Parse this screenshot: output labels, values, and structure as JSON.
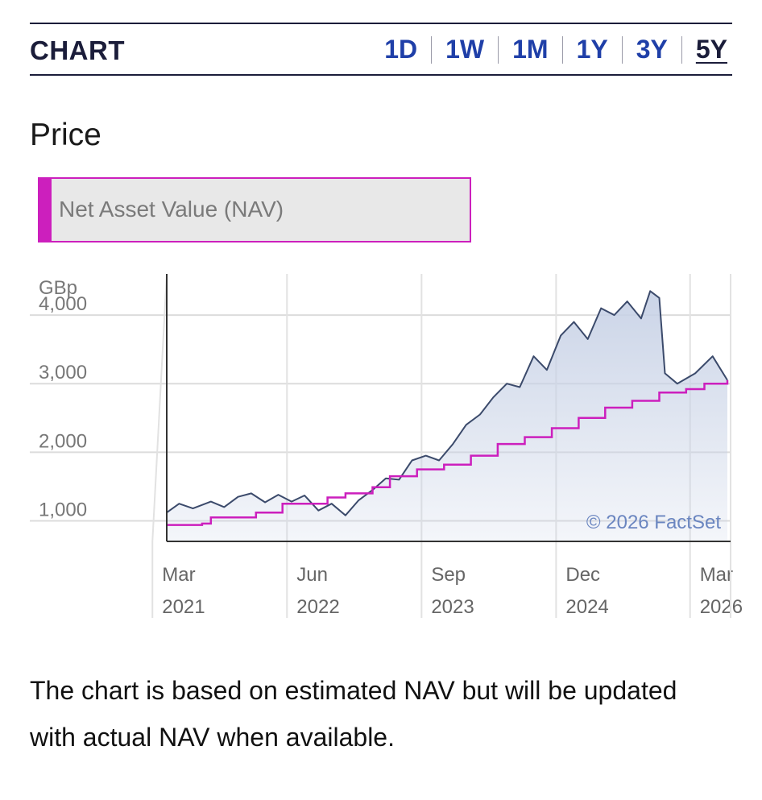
{
  "header": {
    "title": "CHART",
    "ranges": [
      {
        "label": "1D",
        "active": false
      },
      {
        "label": "1W",
        "active": false
      },
      {
        "label": "1M",
        "active": false
      },
      {
        "label": "1Y",
        "active": false
      },
      {
        "label": "3Y",
        "active": false
      },
      {
        "label": "5Y",
        "active": true
      }
    ]
  },
  "section_title": "Price",
  "legend": {
    "label": "Net Asset Value (NAV)",
    "color": "#cc1fbd"
  },
  "footnote": "The chart is based on estimated NAV but will be updated with actual NAV when available.",
  "chart_data": {
    "type": "line",
    "y_unit": "GBp",
    "yticks": [
      {
        "value": 1000,
        "label": "1,000"
      },
      {
        "value": 2000,
        "label": "2,000"
      },
      {
        "value": 3000,
        "label": "3,000"
      },
      {
        "value": 4000,
        "label": "4,000"
      }
    ],
    "ylim": [
      700,
      4600
    ],
    "xlim": [
      "2021-02-01",
      "2026-05-01"
    ],
    "xticks": [
      {
        "date": "2021-03-01",
        "month": "Mar",
        "year": "2021"
      },
      {
        "date": "2022-06-01",
        "month": "Jun",
        "year": "2022"
      },
      {
        "date": "2023-09-01",
        "month": "Sep",
        "year": "2023"
      },
      {
        "date": "2024-12-01",
        "month": "Dec",
        "year": "2024"
      },
      {
        "date": "2026-03-01",
        "month": "Mar",
        "year": "2026"
      }
    ],
    "grid": true,
    "watermark": "© 2026 FactSet",
    "series": [
      {
        "style": "price",
        "color": "#3b4a6b",
        "fill": "#c8d2e6",
        "points": [
          [
            "2021-02-01",
            1120
          ],
          [
            "2021-03-15",
            1250
          ],
          [
            "2021-05-01",
            1180
          ],
          [
            "2021-07-01",
            1280
          ],
          [
            "2021-08-15",
            1200
          ],
          [
            "2021-10-01",
            1350
          ],
          [
            "2021-11-15",
            1400
          ],
          [
            "2022-01-01",
            1270
          ],
          [
            "2022-02-15",
            1380
          ],
          [
            "2022-04-01",
            1280
          ],
          [
            "2022-05-15",
            1370
          ],
          [
            "2022-07-01",
            1150
          ],
          [
            "2022-08-15",
            1250
          ],
          [
            "2022-10-01",
            1080
          ],
          [
            "2022-11-15",
            1300
          ],
          [
            "2023-01-01",
            1450
          ],
          [
            "2023-02-15",
            1620
          ],
          [
            "2023-04-01",
            1600
          ],
          [
            "2023-05-15",
            1880
          ],
          [
            "2023-07-01",
            1950
          ],
          [
            "2023-08-15",
            1880
          ],
          [
            "2023-10-01",
            2120
          ],
          [
            "2023-11-15",
            2400
          ],
          [
            "2024-01-01",
            2550
          ],
          [
            "2024-02-15",
            2800
          ],
          [
            "2024-04-01",
            3000
          ],
          [
            "2024-05-15",
            2950
          ],
          [
            "2024-07-01",
            3400
          ],
          [
            "2024-08-15",
            3200
          ],
          [
            "2024-10-01",
            3700
          ],
          [
            "2024-11-15",
            3900
          ],
          [
            "2025-01-01",
            3650
          ],
          [
            "2025-02-15",
            4100
          ],
          [
            "2025-04-01",
            4000
          ],
          [
            "2025-05-15",
            4200
          ],
          [
            "2025-07-01",
            3950
          ],
          [
            "2025-08-01",
            4350
          ],
          [
            "2025-09-01",
            4250
          ],
          [
            "2025-09-20",
            3150
          ],
          [
            "2025-11-01",
            3000
          ],
          [
            "2026-01-01",
            3150
          ],
          [
            "2026-03-01",
            3400
          ],
          [
            "2026-04-20",
            3050
          ]
        ]
      },
      {
        "style": "nav",
        "color": "#cc1fbd",
        "points": [
          [
            "2021-02-01",
            940
          ],
          [
            "2021-06-01",
            960
          ],
          [
            "2021-07-01",
            1050
          ],
          [
            "2021-12-01",
            1120
          ],
          [
            "2022-03-01",
            1250
          ],
          [
            "2022-08-01",
            1340
          ],
          [
            "2022-10-01",
            1400
          ],
          [
            "2023-01-01",
            1490
          ],
          [
            "2023-03-01",
            1650
          ],
          [
            "2023-06-01",
            1750
          ],
          [
            "2023-09-01",
            1820
          ],
          [
            "2023-12-01",
            1950
          ],
          [
            "2024-03-01",
            2120
          ],
          [
            "2024-06-01",
            2220
          ],
          [
            "2024-09-01",
            2350
          ],
          [
            "2024-12-01",
            2500
          ],
          [
            "2025-03-01",
            2650
          ],
          [
            "2025-06-01",
            2750
          ],
          [
            "2025-09-01",
            2870
          ],
          [
            "2025-12-01",
            2920
          ],
          [
            "2026-02-01",
            3000
          ],
          [
            "2026-04-20",
            3050
          ]
        ]
      }
    ]
  }
}
